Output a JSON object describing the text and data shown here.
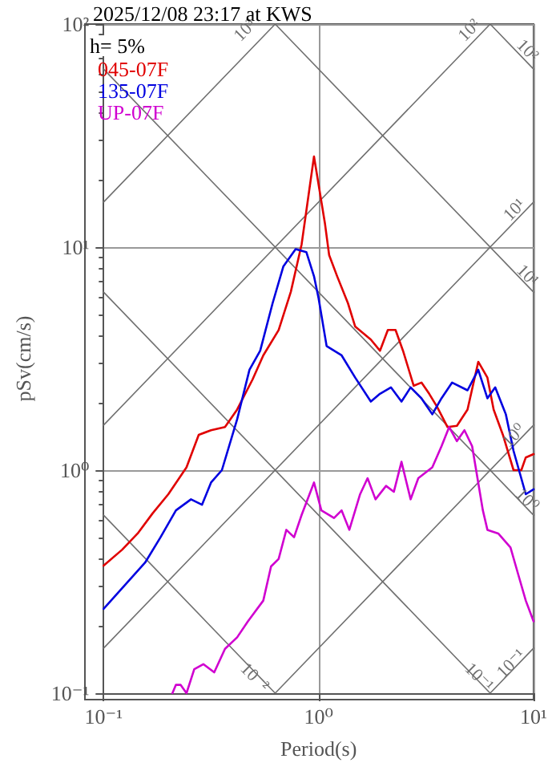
{
  "chart_data": {
    "type": "line",
    "title": "2025/12/08 23:17 at KWS",
    "xlabel": "Period(s)",
    "ylabel": "pSv(cm/s)",
    "legend_title": "h= 5%",
    "legend": "top left",
    "log": "xy",
    "grid": true,
    "xlim": [
      0.1,
      10
    ],
    "ylim": [
      0.1,
      100
    ],
    "xticks": [
      {
        "value": 0.1,
        "label": "10⁻¹"
      },
      {
        "value": 1,
        "label": "10⁰"
      },
      {
        "value": 10,
        "label": "10¹"
      }
    ],
    "yticks": [
      {
        "value": 0.1,
        "label": "10⁻¹"
      },
      {
        "value": 1,
        "label": "10⁰"
      },
      {
        "value": 10,
        "label": "10¹"
      },
      {
        "value": 100,
        "label": "10²"
      }
    ],
    "annotations": [
      {
        "text": "10³",
        "x": 0.6283,
        "y": 100
      },
      {
        "text": "10²",
        "x": 6.283,
        "y": 100
      },
      {
        "text": "10¹",
        "x": 10,
        "y": 15.92
      },
      {
        "text": "10⁰",
        "x": 10,
        "y": 1.592
      },
      {
        "text": "10⁻¹",
        "x": 10,
        "y": 0.1592
      },
      {
        "text": "10²",
        "x": 10,
        "y": 62.83
      },
      {
        "text": "10¹",
        "x": 10,
        "y": 6.283
      },
      {
        "text": "10⁰",
        "x": 10,
        "y": 0.6283
      },
      {
        "text": "10⁻¹",
        "x": 6.283,
        "y": 0.1
      },
      {
        "text": "10⁻²",
        "x": 0.6283,
        "y": 0.1
      }
    ],
    "series": [
      {
        "color": "#707070",
        "x": [
          0.1,
          0.6283
        ],
        "values": [
          15.92,
          100
        ]
      },
      {
        "color": "#707070",
        "x": [
          0.1,
          6.283
        ],
        "values": [
          1.592,
          100
        ]
      },
      {
        "color": "#707070",
        "x": [
          0.1,
          10
        ],
        "values": [
          0.1592,
          15.92
        ]
      },
      {
        "color": "#707070",
        "x": [
          0.6283,
          10
        ],
        "values": [
          0.1,
          1.592
        ]
      },
      {
        "color": "#707070",
        "x": [
          6.283,
          10
        ],
        "values": [
          0.1,
          0.1592
        ]
      },
      {
        "color": "#707070",
        "x": [
          6.283,
          10
        ],
        "values": [
          100,
          62.83
        ]
      },
      {
        "color": "#707070",
        "x": [
          0.6283,
          10
        ],
        "values": [
          100,
          6.283
        ]
      },
      {
        "color": "#707070",
        "x": [
          0.1,
          10
        ],
        "values": [
          62.83,
          0.6283
        ]
      },
      {
        "color": "#707070",
        "x": [
          0.1,
          6.283
        ],
        "values": [
          6.283,
          0.1
        ]
      },
      {
        "color": "#707070",
        "x": [
          0.1,
          0.6283
        ],
        "values": [
          0.6283,
          0.1
        ]
      },
      {
        "name": "045-07F",
        "color": "#e00000",
        "x": [
          0.1,
          0.122,
          0.144,
          0.169,
          0.2,
          0.243,
          0.277,
          0.316,
          0.367,
          0.418,
          0.493,
          0.553,
          0.652,
          0.743,
          0.834,
          0.952,
          1.07,
          1.12,
          1.22,
          1.37,
          1.48,
          1.75,
          1.93,
          2.1,
          2.28,
          2.47,
          2.77,
          3.01,
          3.27,
          3.55,
          3.98,
          4.4,
          4.93,
          5.53,
          6.1,
          6.52,
          7.2,
          8.07,
          8.77,
          9.2,
          10
        ],
        "values": [
          0.373,
          0.44,
          0.52,
          0.64,
          0.78,
          1.03,
          1.44,
          1.51,
          1.56,
          1.87,
          2.55,
          3.27,
          4.25,
          6.31,
          10.3,
          25.5,
          12.8,
          9.2,
          7.4,
          5.6,
          4.4,
          3.85,
          3.43,
          4.25,
          4.25,
          3.43,
          2.39,
          2.47,
          2.2,
          1.93,
          1.56,
          1.58,
          1.87,
          3.06,
          2.6,
          1.87,
          1.44,
          1.0,
          1.0,
          1.14,
          1.18
        ]
      },
      {
        "name": "135-07F",
        "color": "#0000e0",
        "x": [
          0.1,
          0.126,
          0.156,
          0.184,
          0.217,
          0.255,
          0.287,
          0.316,
          0.355,
          0.418,
          0.477,
          0.535,
          0.611,
          0.686,
          0.782,
          0.877,
          0.952,
          1.0,
          1.09,
          1.28,
          1.48,
          1.75,
          1.93,
          2.17,
          2.43,
          2.68,
          3.01,
          3.38,
          3.73,
          4.18,
          4.93,
          5.53,
          6.1,
          6.63,
          7.43,
          8.07,
          9.2,
          10
        ],
        "values": [
          0.239,
          0.306,
          0.385,
          0.5,
          0.66,
          0.74,
          0.7,
          0.88,
          1.0,
          1.69,
          2.82,
          3.43,
          5.6,
          8.2,
          9.8,
          9.5,
          7.4,
          5.9,
          3.6,
          3.27,
          2.6,
          2.03,
          2.2,
          2.35,
          2.03,
          2.35,
          2.1,
          1.78,
          2.1,
          2.47,
          2.28,
          2.82,
          2.1,
          2.35,
          1.78,
          1.22,
          0.78,
          0.82
        ]
      },
      {
        "name": "UP-07F",
        "color": "#d000d0",
        "x": [
          0.209,
          0.217,
          0.228,
          0.243,
          0.264,
          0.291,
          0.327,
          0.367,
          0.418,
          0.469,
          0.553,
          0.601,
          0.652,
          0.708,
          0.769,
          0.834,
          0.952,
          1.03,
          1.18,
          1.28,
          1.39,
          1.56,
          1.69,
          1.84,
          2.06,
          2.24,
          2.43,
          2.68,
          2.91,
          3.38,
          3.73,
          4.05,
          4.4,
          4.77,
          5.18,
          5.81,
          6.1,
          6.85,
          7.81,
          8.49,
          9.2,
          10
        ],
        "values": [
          0.1,
          0.109,
          0.109,
          0.1,
          0.128,
          0.135,
          0.124,
          0.158,
          0.178,
          0.21,
          0.26,
          0.37,
          0.4,
          0.54,
          0.5,
          0.63,
          0.88,
          0.66,
          0.61,
          0.66,
          0.54,
          0.78,
          0.92,
          0.74,
          0.85,
          0.8,
          1.09,
          0.74,
          0.92,
          1.03,
          1.28,
          1.56,
          1.35,
          1.51,
          1.28,
          0.66,
          0.54,
          0.52,
          0.45,
          0.34,
          0.26,
          0.21
        ]
      }
    ]
  }
}
